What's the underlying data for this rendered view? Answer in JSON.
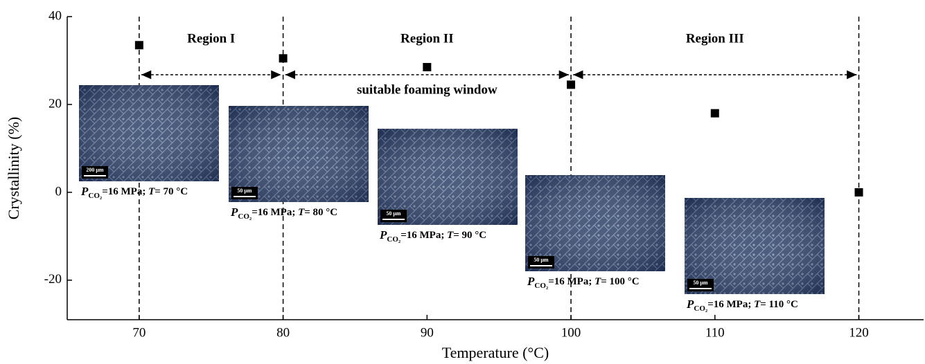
{
  "chart_data": {
    "type": "scatter",
    "x_label": "Temperature (°C)",
    "y_label": "Crystallinity (%)",
    "x": [
      70,
      80,
      90,
      100,
      110,
      120
    ],
    "values": [
      33.5,
      30.5,
      28.5,
      24.5,
      18,
      0
    ],
    "color": "#000000",
    "xlim": [
      65,
      124.5
    ],
    "xticks": [
      70,
      80,
      90,
      100,
      110,
      120
    ],
    "ylim": [
      -29,
      40
    ],
    "yticks": [
      -20,
      0,
      20,
      40
    ],
    "regions": [
      {
        "label": "Region I",
        "start": 70,
        "end": 80
      },
      {
        "label": "Region II",
        "start": 80,
        "end": 100
      },
      {
        "label": "Region III",
        "start": 100,
        "end": 120
      }
    ],
    "window_label": "suitable foaming window",
    "micrographs": [
      {
        "scale_bar": "200 μm",
        "p": "P",
        "sub": "CO₂",
        "pressure": "=16 MPa; ",
        "t": "T",
        "temp": "= 70 °C"
      },
      {
        "scale_bar": "50 μm",
        "p": "P",
        "sub": "CO₂",
        "pressure": "=16 MPa; ",
        "t": "T",
        "temp": "= 80 °C"
      },
      {
        "scale_bar": "50 μm",
        "p": "P",
        "sub": "CO₂",
        "pressure": "=16 MPa; ",
        "t": "T",
        "temp": "= 90 °C"
      },
      {
        "scale_bar": "50 μm",
        "p": "P",
        "sub": "CO₂",
        "pressure": "=16 MPa; ",
        "t": "T",
        "temp": "= 100 °C"
      },
      {
        "scale_bar": "50 μm",
        "p": "P",
        "sub": "CO₂",
        "pressure": "=16 MPa; ",
        "t": "T",
        "temp": "= 110 °C"
      }
    ]
  }
}
